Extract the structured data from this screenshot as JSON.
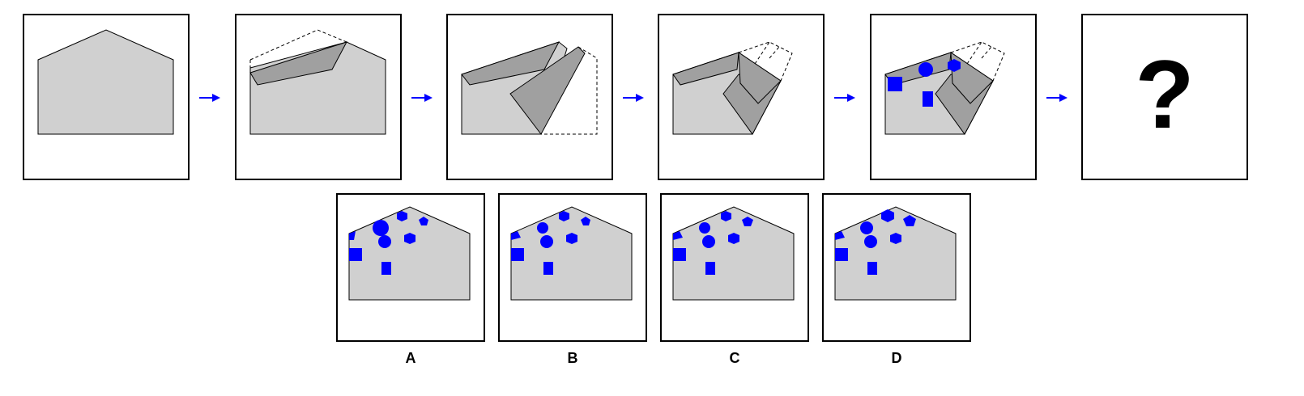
{
  "question_mark": "?",
  "options": [
    "A",
    "B",
    "C",
    "D"
  ],
  "colors": {
    "shapes": "#0000ff",
    "paper": "#d0d0d0",
    "fold": "#a0a0a0",
    "arrow": "#0000ff"
  }
}
